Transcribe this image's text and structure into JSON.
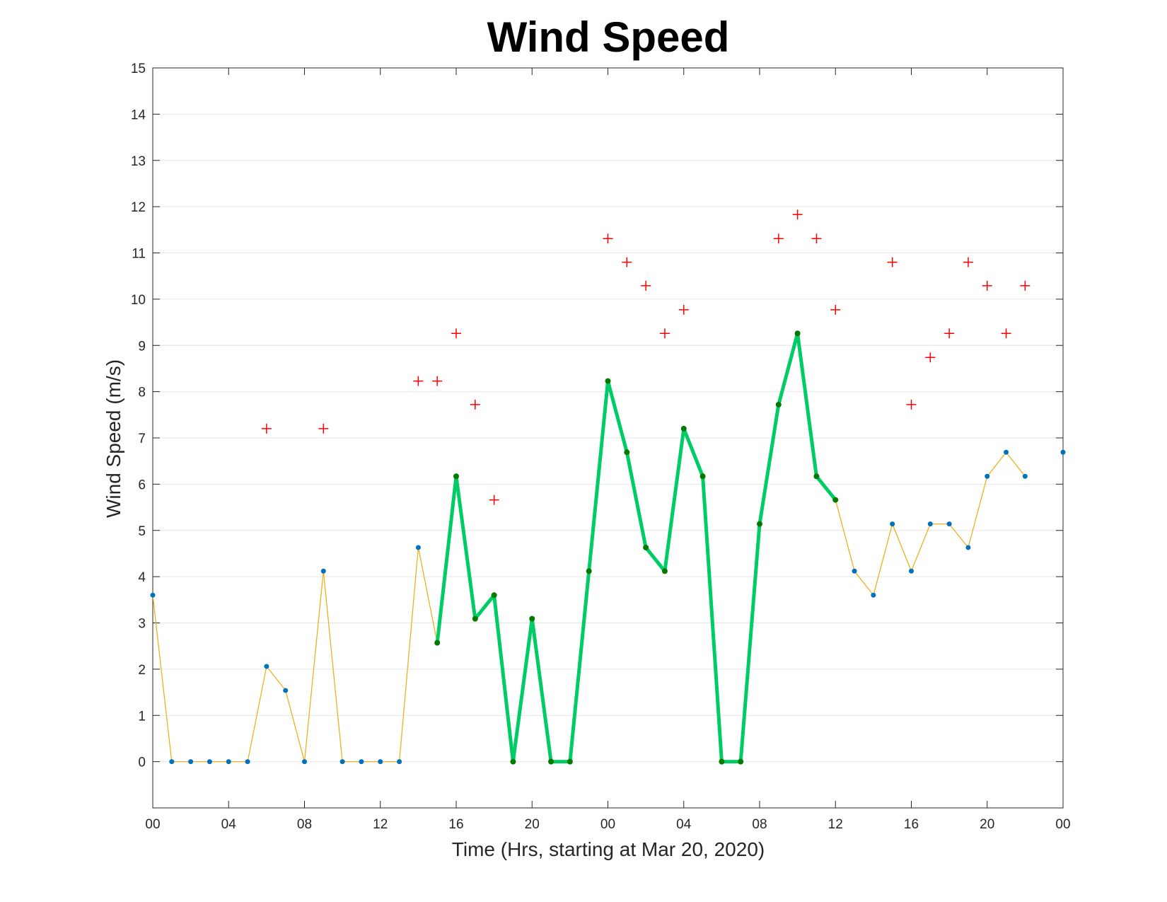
{
  "chart_data": {
    "type": "line",
    "title": "Wind Speed",
    "xlabel": "Time (Hrs, starting at Mar 20, 2020)",
    "ylabel": "Wind Speed (m/s)",
    "xlim": [
      0,
      48
    ],
    "ylim": [
      -1,
      15
    ],
    "grid": "horizontal",
    "x_ticks": [
      0,
      4,
      8,
      12,
      16,
      20,
      24,
      28,
      32,
      36,
      40,
      44,
      48
    ],
    "x_tick_labels": [
      "00",
      "04",
      "08",
      "12",
      "16",
      "20",
      "00",
      "04",
      "08",
      "12",
      "16",
      "20",
      "00"
    ],
    "y_ticks": [
      0,
      1,
      2,
      3,
      4,
      5,
      6,
      7,
      8,
      9,
      10,
      11,
      12,
      13,
      14,
      15
    ],
    "series": [
      {
        "role": "wind speed",
        "style": "thin line with dot markers",
        "color": "#EDB120",
        "marker_color": "#0072BD",
        "x": [
          0,
          1,
          2,
          3,
          4,
          5,
          6,
          7,
          8,
          9,
          10,
          11,
          12,
          13,
          14,
          15,
          16,
          17,
          18,
          19,
          20,
          21,
          22,
          23,
          24,
          25,
          26,
          27,
          28,
          29,
          30,
          31,
          32,
          33,
          34,
          35,
          36,
          37,
          38,
          39,
          40,
          41,
          42,
          43,
          44,
          45,
          46,
          48
        ],
        "y": [
          3.6,
          0,
          0,
          0,
          0,
          0,
          2.06,
          1.54,
          0,
          4.12,
          0,
          0,
          0,
          0,
          4.63,
          2.57,
          6.17,
          3.09,
          3.6,
          0,
          3.09,
          0,
          0,
          4.12,
          8.23,
          6.69,
          4.63,
          4.12,
          7.2,
          6.17,
          0,
          0,
          5.14,
          7.72,
          9.26,
          6.17,
          5.66,
          4.12,
          3.6,
          5.14,
          4.12,
          5.14,
          5.14,
          4.63,
          6.17,
          6.69,
          6.17,
          6.69
        ]
      },
      {
        "role": "highlighted segment",
        "style": "thick line with dot markers",
        "color": "#00CC66",
        "marker_color": "#007A00",
        "x": [
          15,
          16,
          17,
          18,
          19,
          20,
          21,
          22,
          23,
          24,
          25,
          26,
          27,
          28,
          29,
          30,
          31,
          32,
          33,
          34,
          35,
          36
        ],
        "y": [
          2.57,
          6.17,
          3.09,
          3.6,
          0,
          3.09,
          0,
          0,
          4.12,
          8.23,
          6.69,
          4.63,
          4.12,
          7.2,
          6.17,
          0,
          0,
          5.14,
          7.72,
          9.26,
          6.17,
          5.66
        ]
      },
      {
        "role": "gusts",
        "style": "plus markers",
        "color": "#FF0000",
        "x": [
          6,
          9,
          14,
          15,
          16,
          17,
          18,
          24,
          25,
          26,
          27,
          28,
          33,
          34,
          35,
          36,
          39,
          40,
          41,
          42,
          43,
          44,
          45,
          46
        ],
        "y": [
          7.2,
          7.2,
          8.23,
          8.23,
          9.26,
          7.72,
          5.66,
          11.31,
          10.8,
          10.29,
          9.26,
          9.77,
          11.31,
          11.83,
          11.31,
          9.77,
          10.8,
          7.72,
          8.74,
          9.26,
          10.8,
          10.29,
          9.26,
          10.29
        ]
      }
    ]
  }
}
